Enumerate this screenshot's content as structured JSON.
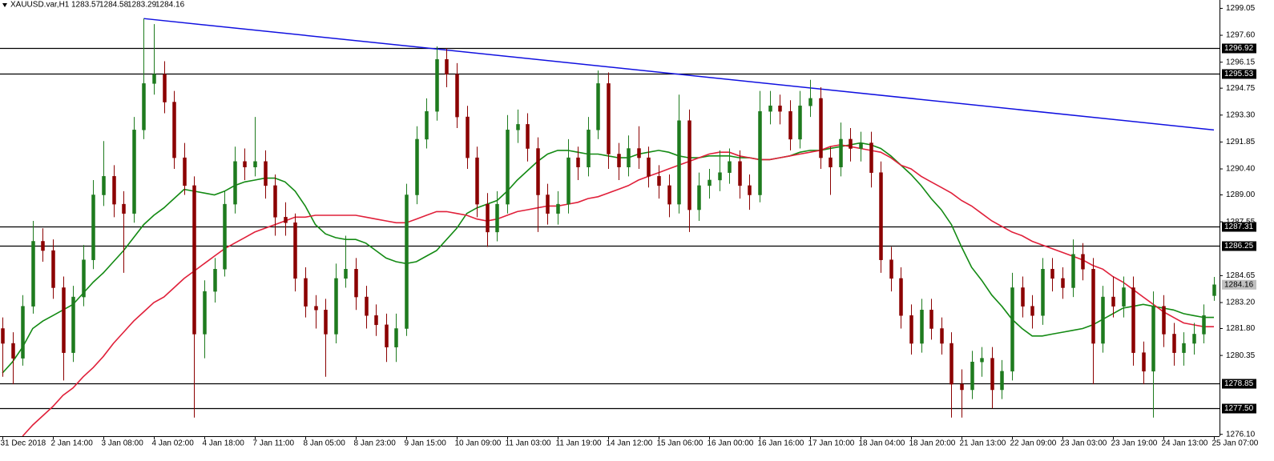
{
  "chart_data": {
    "type": "candlestick",
    "title": "XAUUSD.var,H1",
    "up_color": "#1e7b1e",
    "down_color": "#8b0000",
    "ylim": [
      1276.0,
      1299.5
    ],
    "yticks": [
      1299.05,
      {
        "value": 1297.6,
        "label": "1297.60"
      },
      1296.15,
      1294.75,
      {
        "value": 1293.3,
        "label": "1293.30"
      },
      1291.85,
      {
        "value": 1290.4,
        "label": "1290.40"
      },
      {
        "value": 1289.0,
        "label": "1289.00"
      },
      1287.55,
      1284.65,
      {
        "value": 1283.2,
        "label": "1283.20"
      },
      {
        "value": 1281.8,
        "label": "1281.80"
      },
      1280.35,
      {
        "value": 1276.1,
        "label": "1276.10"
      }
    ],
    "categories": [
      "31 Dec 2018",
      null,
      null,
      null,
      null,
      "2 Jan 14:00",
      null,
      null,
      null,
      null,
      "3 Jan 08:00",
      null,
      null,
      null,
      null,
      "4 Jan 02:00",
      null,
      null,
      null,
      null,
      "4 Jan 18:00",
      null,
      null,
      null,
      null,
      "7 Jan 11:00",
      null,
      null,
      null,
      null,
      "8 Jan 05:00",
      null,
      null,
      null,
      null,
      "8 Jan 23:00",
      null,
      null,
      null,
      null,
      "9 Jan 15:00",
      null,
      null,
      null,
      null,
      "10 Jan 09:00",
      null,
      null,
      null,
      null,
      "11 Jan 03:00",
      null,
      null,
      null,
      null,
      "11 Jan 19:00",
      null,
      null,
      null,
      null,
      "14 Jan 12:00",
      null,
      null,
      null,
      null,
      "15 Jan 06:00",
      null,
      null,
      null,
      null,
      "16 Jan 00:00",
      null,
      null,
      null,
      null,
      "16 Jan 16:00",
      null,
      null,
      null,
      null,
      "17 Jan 10:00",
      null,
      null,
      null,
      null,
      "18 Jan 04:00",
      null,
      null,
      null,
      null,
      "18 Jan 20:00",
      null,
      null,
      null,
      null,
      "21 Jan 13:00",
      null,
      null,
      null,
      null,
      "22 Jan 09:00",
      null,
      null,
      null,
      null,
      "23 Jan 03:00",
      null,
      null,
      null,
      null,
      "23 Jan 19:00",
      null,
      null,
      null,
      null,
      "24 Jan 13:00",
      null,
      null,
      null,
      null,
      "25 Jan 07:00"
    ],
    "ohlc": [
      [
        1281.8,
        1282.4,
        1279.2,
        1281.0
      ],
      [
        1281.0,
        1281.6,
        1278.8,
        1280.2
      ],
      [
        1280.2,
        1283.6,
        1279.8,
        1283.0
      ],
      [
        1283.0,
        1287.6,
        1282.6,
        1286.5
      ],
      [
        1286.5,
        1287.2,
        1285.4,
        1286.0
      ],
      [
        1286.0,
        1286.6,
        1283.4,
        1284.0
      ],
      [
        1284.0,
        1284.6,
        1279.0,
        1280.5
      ],
      [
        1280.5,
        1284.1,
        1280.0,
        1283.5
      ],
      [
        1283.5,
        1286.3,
        1283.0,
        1285.5
      ],
      [
        1285.5,
        1289.8,
        1285.0,
        1289.0
      ],
      [
        1289.0,
        1291.9,
        1288.4,
        1290.0
      ],
      [
        1290.0,
        1290.6,
        1287.8,
        1288.5
      ],
      [
        1288.5,
        1289.2,
        1284.8,
        1288.0
      ],
      [
        1288.0,
        1293.2,
        1287.5,
        1292.5
      ],
      [
        1292.5,
        1298.5,
        1292.0,
        1295.0
      ],
      [
        1295.0,
        1298.2,
        1294.4,
        1295.5
      ],
      [
        1295.5,
        1296.2,
        1293.4,
        1294.0
      ],
      [
        1294.0,
        1294.6,
        1290.4,
        1291.0
      ],
      [
        1291.0,
        1291.8,
        1289.0,
        1289.5
      ],
      [
        1289.5,
        1290.0,
        1277.0,
        1281.5
      ],
      [
        1281.5,
        1284.4,
        1280.2,
        1283.8
      ],
      [
        1283.8,
        1285.6,
        1283.2,
        1285.0
      ],
      [
        1285.0,
        1289.2,
        1284.6,
        1288.5
      ],
      [
        1288.5,
        1291.6,
        1288.0,
        1290.8
      ],
      [
        1290.8,
        1291.5,
        1289.8,
        1290.5
      ],
      [
        1290.5,
        1293.2,
        1290.0,
        1290.8
      ],
      [
        1290.8,
        1291.4,
        1288.8,
        1289.5
      ],
      [
        1289.5,
        1290.1,
        1286.8,
        1287.8
      ],
      [
        1287.8,
        1288.6,
        1286.8,
        1287.5
      ],
      [
        1287.5,
        1288.0,
        1283.8,
        1284.5
      ],
      [
        1284.5,
        1285.1,
        1282.4,
        1283.0
      ],
      [
        1283.0,
        1283.6,
        1281.8,
        1282.8
      ],
      [
        1282.8,
        1283.4,
        1279.2,
        1281.5
      ],
      [
        1281.5,
        1285.3,
        1281.0,
        1284.5
      ],
      [
        1284.5,
        1286.8,
        1284.0,
        1285.0
      ],
      [
        1285.0,
        1285.6,
        1282.8,
        1283.5
      ],
      [
        1283.5,
        1284.1,
        1281.8,
        1282.5
      ],
      [
        1282.5,
        1283.1,
        1281.4,
        1282.0
      ],
      [
        1282.0,
        1282.6,
        1280.0,
        1280.8
      ],
      [
        1280.8,
        1282.6,
        1280.0,
        1281.8
      ],
      [
        1281.8,
        1289.6,
        1281.4,
        1289.0
      ],
      [
        1289.0,
        1292.7,
        1288.5,
        1292.0
      ],
      [
        1292.0,
        1294.2,
        1291.5,
        1293.5
      ],
      [
        1293.5,
        1297.0,
        1293.0,
        1296.3
      ],
      [
        1296.3,
        1296.9,
        1294.8,
        1295.5
      ],
      [
        1295.5,
        1296.1,
        1292.6,
        1293.2
      ],
      [
        1293.2,
        1293.8,
        1290.4,
        1291.0
      ],
      [
        1291.0,
        1291.6,
        1287.8,
        1288.5
      ],
      [
        1288.5,
        1289.1,
        1286.2,
        1287.0
      ],
      [
        1287.0,
        1289.2,
        1286.5,
        1288.5
      ],
      [
        1288.5,
        1293.3,
        1288.0,
        1292.5
      ],
      [
        1292.5,
        1293.6,
        1291.8,
        1292.8
      ],
      [
        1292.8,
        1293.4,
        1290.8,
        1291.5
      ],
      [
        1291.5,
        1292.1,
        1287.0,
        1289.0
      ],
      [
        1289.0,
        1289.6,
        1287.4,
        1288.0
      ],
      [
        1288.0,
        1289.2,
        1287.4,
        1288.5
      ],
      [
        1288.5,
        1292.0,
        1288.0,
        1291.0
      ],
      [
        1291.0,
        1291.6,
        1289.8,
        1290.5
      ],
      [
        1290.5,
        1293.2,
        1290.0,
        1292.5
      ],
      [
        1292.5,
        1295.7,
        1292.0,
        1295.0
      ],
      [
        1295.0,
        1295.6,
        1290.4,
        1291.2
      ],
      [
        1291.2,
        1291.8,
        1289.8,
        1290.5
      ],
      [
        1290.5,
        1292.2,
        1290.0,
        1291.5
      ],
      [
        1291.5,
        1292.7,
        1290.4,
        1291.0
      ],
      [
        1291.0,
        1291.6,
        1289.4,
        1290.0
      ],
      [
        1290.0,
        1290.6,
        1288.8,
        1289.5
      ],
      [
        1289.5,
        1290.1,
        1287.8,
        1288.5
      ],
      [
        1288.5,
        1294.4,
        1288.0,
        1293.0
      ],
      [
        1293.0,
        1293.6,
        1287.0,
        1288.2
      ],
      [
        1288.2,
        1290.2,
        1287.6,
        1289.5
      ],
      [
        1289.5,
        1290.4,
        1288.8,
        1289.8
      ],
      [
        1289.8,
        1291.4,
        1289.2,
        1290.2
      ],
      [
        1290.2,
        1291.5,
        1289.6,
        1290.8
      ],
      [
        1290.8,
        1291.4,
        1288.8,
        1289.5
      ],
      [
        1289.5,
        1290.1,
        1288.2,
        1289.0
      ],
      [
        1289.0,
        1294.6,
        1288.6,
        1293.5
      ],
      [
        1293.5,
        1294.6,
        1292.8,
        1293.8
      ],
      [
        1293.8,
        1294.4,
        1292.8,
        1293.5
      ],
      [
        1293.5,
        1294.1,
        1291.4,
        1292.0
      ],
      [
        1292.0,
        1294.6,
        1291.5,
        1293.8
      ],
      [
        1293.8,
        1295.2,
        1293.2,
        1294.2
      ],
      [
        1294.2,
        1294.8,
        1290.4,
        1291.0
      ],
      [
        1291.0,
        1291.6,
        1289.0,
        1290.5
      ],
      [
        1290.5,
        1292.9,
        1290.0,
        1292.0
      ],
      [
        1292.0,
        1292.6,
        1290.8,
        1291.5
      ],
      [
        1291.5,
        1292.4,
        1290.8,
        1291.8
      ],
      [
        1291.8,
        1292.4,
        1289.4,
        1290.2
      ],
      [
        1290.2,
        1290.8,
        1284.8,
        1285.5
      ],
      [
        1285.5,
        1286.2,
        1283.8,
        1284.5
      ],
      [
        1284.5,
        1285.1,
        1281.8,
        1282.5
      ],
      [
        1282.5,
        1283.1,
        1280.4,
        1281.0
      ],
      [
        1281.0,
        1283.4,
        1280.5,
        1282.8
      ],
      [
        1282.8,
        1283.4,
        1281.2,
        1281.8
      ],
      [
        1281.8,
        1282.4,
        1280.4,
        1281.0
      ],
      [
        1281.0,
        1281.6,
        1277.0,
        1278.8
      ],
      [
        1278.8,
        1279.6,
        1277.0,
        1278.5
      ],
      [
        1278.5,
        1280.6,
        1278.0,
        1280.0
      ],
      [
        1280.0,
        1280.8,
        1279.2,
        1280.2
      ],
      [
        1280.2,
        1280.8,
        1277.5,
        1278.5
      ],
      [
        1278.5,
        1280.1,
        1278.0,
        1279.5
      ],
      [
        1279.5,
        1284.8,
        1279.0,
        1284.0
      ],
      [
        1284.0,
        1284.6,
        1282.4,
        1283.0
      ],
      [
        1283.0,
        1283.6,
        1281.8,
        1282.5
      ],
      [
        1282.5,
        1285.6,
        1282.0,
        1285.0
      ],
      [
        1285.0,
        1285.6,
        1283.8,
        1284.5
      ],
      [
        1284.5,
        1285.1,
        1283.4,
        1284.0
      ],
      [
        1284.0,
        1286.6,
        1283.5,
        1285.8
      ],
      [
        1285.8,
        1286.4,
        1284.4,
        1285.0
      ],
      [
        1285.0,
        1285.6,
        1278.8,
        1281.0
      ],
      [
        1281.0,
        1284.1,
        1280.5,
        1283.5
      ],
      [
        1283.5,
        1284.6,
        1282.4,
        1283.0
      ],
      [
        1283.0,
        1284.6,
        1282.4,
        1284.0
      ],
      [
        1284.0,
        1284.6,
        1279.8,
        1280.5
      ],
      [
        1280.5,
        1281.1,
        1278.8,
        1279.5
      ],
      [
        1279.5,
        1283.8,
        1277.0,
        1283.0
      ],
      [
        1283.0,
        1283.6,
        1280.8,
        1281.5
      ],
      [
        1281.5,
        1282.1,
        1279.8,
        1280.5
      ],
      [
        1280.5,
        1281.6,
        1279.8,
        1281.0
      ],
      [
        1281.0,
        1282.1,
        1280.4,
        1281.5
      ],
      [
        1281.5,
        1283.1,
        1281.0,
        1282.5
      ],
      [
        1283.57,
        1284.58,
        1283.29,
        1284.16
      ]
    ],
    "moving_averages": [
      {
        "color": "#138a13",
        "values": [
          1279.4,
          1280.0,
          1280.8,
          1281.8,
          1282.2,
          1282.5,
          1282.8,
          1283.1,
          1283.7,
          1284.3,
          1284.8,
          1285.4,
          1286.0,
          1286.7,
          1287.4,
          1287.9,
          1288.3,
          1288.8,
          1289.3,
          1289.2,
          1289.1,
          1289.0,
          1289.2,
          1289.5,
          1289.7,
          1289.8,
          1289.9,
          1289.9,
          1289.7,
          1289.2,
          1288.4,
          1287.4,
          1286.9,
          1286.7,
          1286.6,
          1286.6,
          1286.4,
          1286.0,
          1285.6,
          1285.4,
          1285.3,
          1285.4,
          1285.7,
          1286.0,
          1286.6,
          1287.2,
          1288.0,
          1288.3,
          1288.5,
          1288.7,
          1289.2,
          1289.8,
          1290.3,
          1290.8,
          1291.2,
          1291.4,
          1291.4,
          1291.3,
          1291.2,
          1291.2,
          1291.1,
          1291.0,
          1291.0,
          1291.2,
          1291.3,
          1291.4,
          1291.3,
          1291.1,
          1291.0,
          1291.0,
          1291.1,
          1291.1,
          1291.1,
          1291.0,
          1291.0,
          1290.9,
          1290.9,
          1291.0,
          1291.1,
          1291.3,
          1291.4,
          1291.4,
          1291.5,
          1291.6,
          1291.7,
          1291.8,
          1291.7,
          1291.5,
          1291.1,
          1290.6,
          1290.1,
          1289.5,
          1288.8,
          1288.2,
          1287.4,
          1286.2,
          1285.1,
          1284.4,
          1283.6,
          1283.0,
          1282.3,
          1281.8,
          1281.4,
          1281.4,
          1281.5,
          1281.6,
          1281.7,
          1281.8,
          1282.0,
          1282.3,
          1282.6,
          1282.9,
          1283.0,
          1283.1,
          1283.0,
          1282.9,
          1282.8,
          1282.6,
          1282.5,
          1282.4,
          1282.4
        ]
      },
      {
        "color": "#e0203a",
        "values": [
          null,
          null,
          1276.0,
          1276.6,
          1277.1,
          1277.6,
          1278.2,
          1278.6,
          1279.2,
          1279.7,
          1280.3,
          1281.0,
          1281.6,
          1282.2,
          1282.7,
          1283.2,
          1283.5,
          1284.0,
          1284.5,
          1284.9,
          1285.3,
          1285.7,
          1286.1,
          1286.4,
          1286.7,
          1287.0,
          1287.2,
          1287.4,
          1287.6,
          1287.8,
          1287.8,
          1287.9,
          1287.9,
          1287.9,
          1287.9,
          1287.9,
          1287.8,
          1287.7,
          1287.6,
          1287.5,
          1287.5,
          1287.7,
          1287.9,
          1288.1,
          1288.1,
          1288.0,
          1287.9,
          1287.7,
          1287.6,
          1287.7,
          1287.9,
          1288.1,
          1288.2,
          1288.3,
          1288.4,
          1288.4,
          1288.5,
          1288.6,
          1288.8,
          1288.9,
          1289.1,
          1289.3,
          1289.5,
          1289.8,
          1290.0,
          1290.2,
          1290.4,
          1290.6,
          1290.8,
          1291.0,
          1291.2,
          1291.3,
          1291.3,
          1291.1,
          1291.0,
          1290.9,
          1290.9,
          1291.0,
          1291.1,
          1291.2,
          1291.3,
          1291.4,
          1291.6,
          1291.7,
          1291.6,
          1291.5,
          1291.4,
          1291.3,
          1291.0,
          1290.6,
          1290.4,
          1290.0,
          1289.7,
          1289.4,
          1289.1,
          1288.7,
          1288.4,
          1288.0,
          1287.6,
          1287.3,
          1287.0,
          1286.8,
          1286.5,
          1286.3,
          1286.1,
          1285.9,
          1285.7,
          1285.5,
          1285.2,
          1285.0,
          1284.6,
          1284.3,
          1283.9,
          1283.5,
          1283.1,
          1282.7,
          1282.4,
          1282.1,
          1282.0,
          1281.9,
          1281.9
        ]
      }
    ],
    "trendline": {
      "color": "#1010e0",
      "x": [
        14,
        120
      ],
      "y": [
        1298.5,
        1292.5
      ]
    },
    "hlines": [
      1296.92,
      1295.53,
      1287.31,
      1286.25,
      1278.85,
      {
        "value": 1277.5,
        "label": "1277.50"
      }
    ]
  }
}
